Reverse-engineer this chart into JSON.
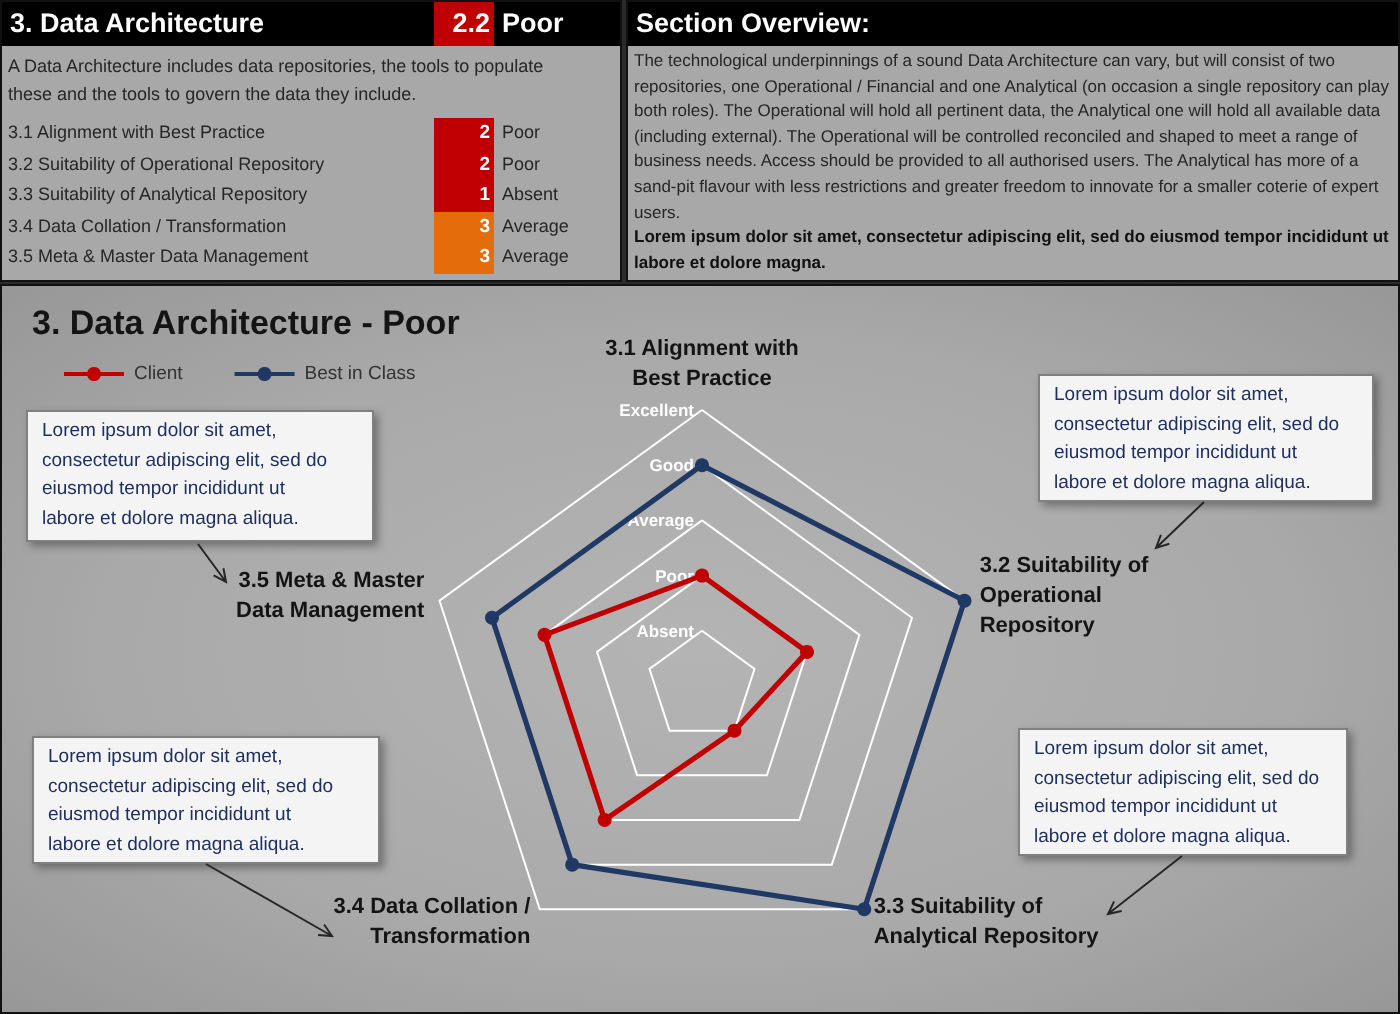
{
  "chart_data": [
    {
      "type": "heatmap",
      "title": "3. Data Architecture",
      "subtitle": "A Data Architecture includes data repositories, the tools to populate these and the tools to govern the data they include.",
      "categories": [
        null
      ],
      "y_categories": [
        "3.1 Alignment with Best Practice",
        "3.2 Suitability of Operational Repository",
        "3.3 Suitability of Analytical Repository",
        "3.4 Data Collation / Transformation",
        "3.5 Meta & Master Data Management"
      ],
      "y2_categories": [
        "Poor",
        "Poor",
        "Absent",
        "Average",
        "Average"
      ],
      "cells": [
        [
          2
        ],
        [
          2
        ],
        [
          1
        ],
        [
          3
        ],
        [
          3
        ]
      ],
      "colors": [
        "#c00000",
        "#c00000",
        "#c00000",
        "#e46c0a",
        "#e46c0a"
      ],
      "data_labels": true,
      "annotations": [
        "2.2",
        "Poor"
      ]
    },
    {
      "type": "other",
      "title": "Section Overview:",
      "annotations": [
        "The technological underpinnings of a sound Data Architecture can vary, but will consist of two repositories, one Operational / Financial and one Analytical (on occasion a single repository can play both roles). The Operational will hold all pertinent data, the Analytical one will hold all available data (including external). The Operational will be controlled reconciled and shaped to meet a range of business needs. Access should be provided to all authorised users. The Analytical has more of a sand-pit flavour with less restrictions and greater freedom to innovate for a smaller coterie of expert users.",
        "Lorem ipsum dolor sit amet, consectetur adipiscing elit, sed do eiusmod tempor incididunt ut labore et dolore magna."
      ]
    },
    {
      "type": "radar",
      "title": "3. Data Architecture - Poor",
      "categories": [
        "3.1 Alignment with Best Practice",
        "3.2 Suitability of Operational Repository",
        "3.3 Suitability of Analytical Repository",
        "3.4 Data Collation / Transformation",
        "3.5 Meta & Master Data Management"
      ],
      "series": [
        {
          "name": "Client",
          "color": "#c00000",
          "values": [
            2,
            2,
            1,
            3,
            3
          ]
        },
        {
          "name": "Best in Class",
          "color": "#1f3864",
          "values": [
            4,
            5,
            5,
            4,
            4
          ]
        }
      ],
      "ylim": [
        0,
        5
      ],
      "yticks": [
        {
          "value": 1,
          "label": "Absent"
        },
        {
          "value": 2,
          "label": "Poor"
        },
        {
          "value": 3,
          "label": "Average"
        },
        {
          "value": 4,
          "label": "Good"
        },
        {
          "value": 5,
          "label": "Excellent"
        }
      ],
      "grid": true,
      "legend": "top left",
      "marker": "circle",
      "line_style": "solid",
      "annotations": [
        "Lorem ipsum dolor sit amet, consectetur adipiscing elit, sed do eiusmod tempor incididunt ut labore et dolore magna aliqua.",
        "Lorem ipsum dolor sit amet, consectetur adipiscing elit, sed do eiusmod tempor incididunt ut labore et dolore magna aliqua.",
        "Lorem ipsum dolor sit amet, consectetur adipiscing elit, sed do eiusmod tempor incididunt ut labore et dolore magna aliqua.",
        "Lorem ipsum dolor sit amet, consectetur adipiscing elit, sed do eiusmod tempor incididunt ut labore et dolore magna aliqua."
      ]
    }
  ]
}
